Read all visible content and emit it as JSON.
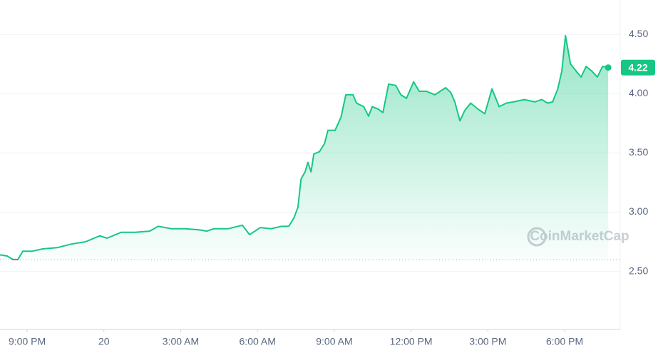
{
  "chart_data": {
    "type": "line",
    "x": [
      19.94,
      20.22,
      20.44,
      20.64,
      20.83,
      21.19,
      21.61,
      22.17,
      22.72,
      23.28,
      23.84,
      24.12,
      24.68,
      25.23,
      25.79,
      26.12,
      26.63,
      27.18,
      27.74,
      28.02,
      28.3,
      28.86,
      29.41,
      29.69,
      30.11,
      30.53,
      30.94,
      31.22,
      31.42,
      31.58,
      31.7,
      31.86,
      31.97,
      32.09,
      32.2,
      32.42,
      32.62,
      32.75,
      33.03,
      33.26,
      33.45,
      33.73,
      33.87,
      34.15,
      34.34,
      34.48,
      34.71,
      34.9,
      35.12,
      35.4,
      35.6,
      35.82,
      36.1,
      36.32,
      36.6,
      36.93,
      37.35,
      37.55,
      37.71,
      37.91,
      38.1,
      38.33,
      38.61,
      38.88,
      39.16,
      39.44,
      39.72,
      40.0,
      40.42,
      40.83,
      41.11,
      41.33,
      41.53,
      41.73,
      41.89,
      42.03,
      42.23,
      42.45,
      42.64,
      42.84,
      43.06,
      43.28,
      43.48,
      43.7
    ],
    "series": [
      {
        "color": "#16c784",
        "values": [
          2.64,
          2.63,
          2.6,
          2.6,
          2.67,
          2.67,
          2.69,
          2.7,
          2.73,
          2.75,
          2.8,
          2.78,
          2.83,
          2.83,
          2.84,
          2.88,
          2.86,
          2.86,
          2.85,
          2.84,
          2.86,
          2.86,
          2.89,
          2.81,
          2.87,
          2.86,
          2.88,
          2.88,
          2.95,
          3.04,
          3.28,
          3.34,
          3.42,
          3.34,
          3.49,
          3.51,
          3.58,
          3.69,
          3.69,
          3.8,
          3.99,
          3.99,
          3.92,
          3.89,
          3.81,
          3.89,
          3.87,
          3.84,
          4.08,
          4.07,
          3.99,
          3.96,
          4.1,
          4.02,
          4.02,
          3.99,
          4.05,
          4.01,
          3.93,
          3.77,
          3.86,
          3.92,
          3.87,
          3.83,
          4.04,
          3.89,
          3.92,
          3.93,
          3.95,
          3.93,
          3.95,
          3.92,
          3.93,
          4.04,
          4.19,
          4.49,
          4.25,
          4.19,
          4.14,
          4.23,
          4.19,
          4.14,
          4.23,
          4.22
        ]
      }
    ],
    "below_color": "#ea3943",
    "baseline": 2.6,
    "current_price": 4.22,
    "watermark": "CoinMarketCap",
    "xlim": [
      19.94,
      44.17
    ],
    "xticks": [
      {
        "value": 21,
        "label": "9:00 PM"
      },
      {
        "value": 24,
        "label": "20"
      },
      {
        "value": 27,
        "label": "3:00 AM"
      },
      {
        "value": 30,
        "label": "6:00 AM"
      },
      {
        "value": 33,
        "label": "9:00 AM"
      },
      {
        "value": 36,
        "label": "12:00 PM"
      },
      {
        "value": 39,
        "label": "3:00 PM"
      },
      {
        "value": 42,
        "label": "6:00 PM"
      }
    ],
    "ylim": [
      2.01,
      4.79
    ],
    "yticks": [
      {
        "value": 2.5,
        "label": "2.50"
      },
      {
        "value": 3,
        "label": "3.00"
      },
      {
        "value": 3.5,
        "label": "3.50"
      },
      {
        "value": 4,
        "label": "4.00"
      },
      {
        "value": 4.5,
        "label": "4.50"
      }
    ],
    "grid": true
  }
}
